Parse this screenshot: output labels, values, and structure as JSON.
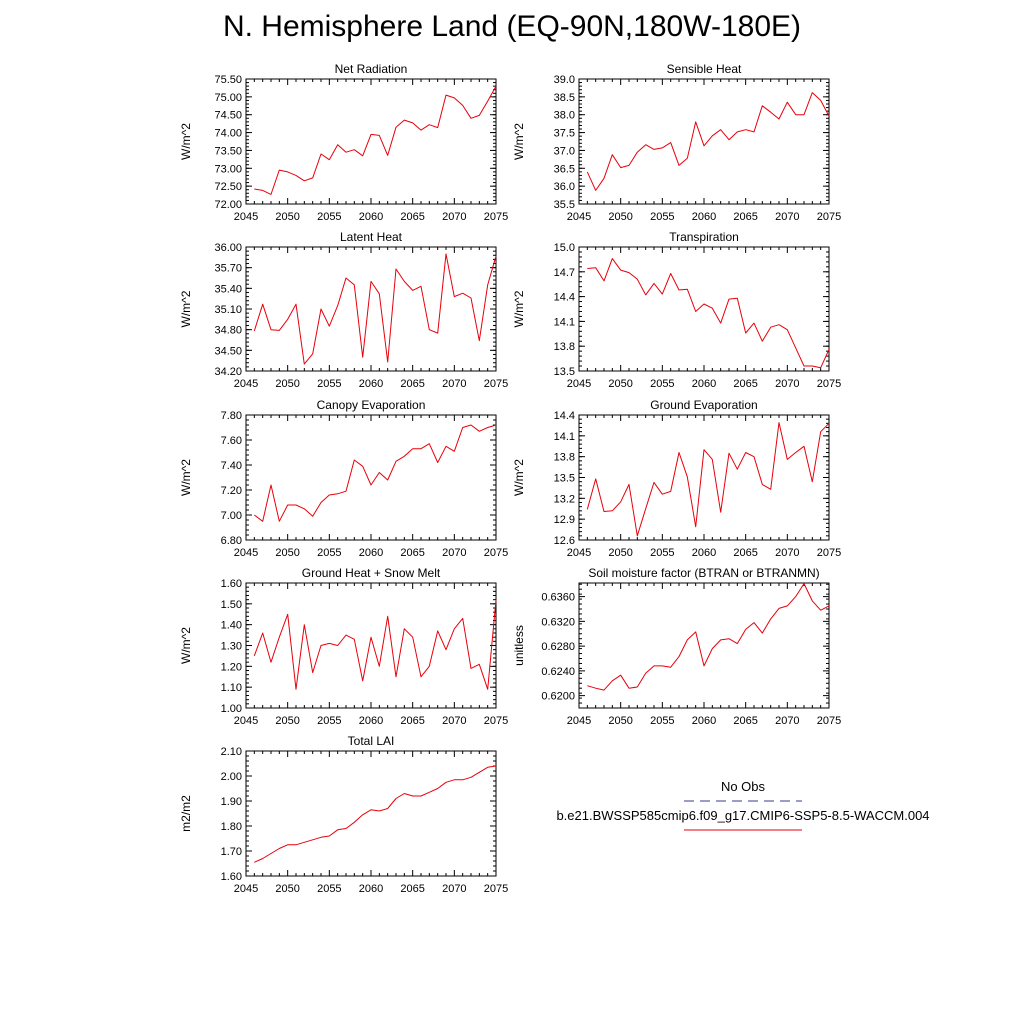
{
  "page": {
    "title": "N. Hemisphere Land (EQ-90N,180W-180E)"
  },
  "legend": {
    "obs_label": "No Obs",
    "obs_color": "#3a3a9a",
    "case_label": "b.e21.BWSSP585cmip6.f09_g17.CMIP6-SSP5-8.5-WACCM.004",
    "case_color": "#e8000b"
  },
  "chart_data": [
    {
      "type": "line",
      "title": "Net Radiation",
      "ylabel": "W/m^2",
      "xlim": [
        2045,
        2075
      ],
      "ylim": [
        72.0,
        75.5
      ],
      "xticks": [
        "2045",
        "2050",
        "2055",
        "2060",
        "2065",
        "2070",
        "2075"
      ],
      "yticks": [
        "72.00",
        "72.50",
        "73.00",
        "73.50",
        "74.00",
        "74.50",
        "75.00",
        "75.50"
      ],
      "series": [
        {
          "color": "#e8000b",
          "x": [
            2046,
            2047,
            2048,
            2049,
            2050,
            2051,
            2052,
            2053,
            2054,
            2055,
            2056,
            2057,
            2058,
            2059,
            2060,
            2061,
            2062,
            2063,
            2064,
            2065,
            2066,
            2067,
            2068,
            2069,
            2070,
            2071,
            2072,
            2073,
            2074,
            2075
          ],
          "values": [
            72.42,
            72.38,
            72.27,
            72.95,
            72.9,
            72.8,
            72.65,
            72.73,
            73.4,
            73.24,
            73.66,
            73.45,
            73.52,
            73.35,
            73.95,
            73.92,
            73.36,
            74.15,
            74.35,
            74.27,
            74.07,
            74.22,
            74.14,
            75.05,
            74.97,
            74.76,
            74.4,
            74.48,
            74.88,
            75.3
          ]
        }
      ]
    },
    {
      "type": "line",
      "title": "Sensible Heat",
      "ylabel": "W/m^2",
      "xlim": [
        2045,
        2075
      ],
      "ylim": [
        35.5,
        39.0
      ],
      "xticks": [
        "2045",
        "2050",
        "2055",
        "2060",
        "2065",
        "2070",
        "2075"
      ],
      "yticks": [
        "35.5",
        "36.0",
        "36.5",
        "37.0",
        "37.5",
        "38.0",
        "38.5",
        "39.0"
      ],
      "series": [
        {
          "color": "#e8000b",
          "x": [
            2046,
            2047,
            2048,
            2049,
            2050,
            2051,
            2052,
            2053,
            2054,
            2055,
            2056,
            2057,
            2058,
            2059,
            2060,
            2061,
            2062,
            2063,
            2064,
            2065,
            2066,
            2067,
            2068,
            2069,
            2070,
            2071,
            2072,
            2073,
            2074,
            2075
          ],
          "values": [
            36.4,
            35.88,
            36.22,
            36.88,
            36.52,
            36.58,
            36.95,
            37.16,
            37.03,
            37.07,
            37.22,
            36.58,
            36.78,
            37.8,
            37.13,
            37.41,
            37.58,
            37.3,
            37.52,
            37.58,
            37.52,
            38.25,
            38.07,
            37.88,
            38.35,
            38.0,
            38.0,
            38.62,
            38.4,
            37.96
          ]
        }
      ]
    },
    {
      "type": "line",
      "title": "Latent Heat",
      "ylabel": "W/m^2",
      "xlim": [
        2045,
        2075
      ],
      "ylim": [
        34.2,
        36.0
      ],
      "xticks": [
        "2045",
        "2050",
        "2055",
        "2060",
        "2065",
        "2070",
        "2075"
      ],
      "yticks": [
        "34.20",
        "34.50",
        "34.80",
        "35.10",
        "35.40",
        "35.70",
        "36.00"
      ],
      "series": [
        {
          "color": "#e8000b",
          "x": [
            2046,
            2047,
            2048,
            2049,
            2050,
            2051,
            2052,
            2053,
            2054,
            2055,
            2056,
            2057,
            2058,
            2059,
            2060,
            2061,
            2062,
            2063,
            2064,
            2065,
            2066,
            2067,
            2068,
            2069,
            2070,
            2071,
            2072,
            2073,
            2074,
            2075
          ],
          "values": [
            34.78,
            35.17,
            34.8,
            34.79,
            34.95,
            35.17,
            34.3,
            34.45,
            35.1,
            34.85,
            35.15,
            35.55,
            35.45,
            34.4,
            35.5,
            35.32,
            34.33,
            35.68,
            35.5,
            35.37,
            35.43,
            34.8,
            34.75,
            35.9,
            35.28,
            35.33,
            35.26,
            34.64,
            35.45,
            35.87
          ]
        }
      ]
    },
    {
      "type": "line",
      "title": "Transpiration",
      "ylabel": "W/m^2",
      "xlim": [
        2045,
        2075
      ],
      "ylim": [
        13.5,
        15.0
      ],
      "xticks": [
        "2045",
        "2050",
        "2055",
        "2060",
        "2065",
        "2070",
        "2075"
      ],
      "yticks": [
        "13.5",
        "13.8",
        "14.1",
        "14.4",
        "14.7",
        "15.0"
      ],
      "series": [
        {
          "color": "#e8000b",
          "x": [
            2046,
            2047,
            2048,
            2049,
            2050,
            2051,
            2052,
            2053,
            2054,
            2055,
            2056,
            2057,
            2058,
            2059,
            2060,
            2061,
            2062,
            2063,
            2064,
            2065,
            2066,
            2067,
            2068,
            2069,
            2070,
            2071,
            2072,
            2073,
            2074,
            2075
          ],
          "values": [
            14.74,
            14.75,
            14.59,
            14.86,
            14.72,
            14.69,
            14.61,
            14.42,
            14.56,
            14.43,
            14.68,
            14.48,
            14.49,
            14.22,
            14.31,
            14.26,
            14.08,
            14.37,
            14.38,
            13.96,
            14.08,
            13.86,
            14.03,
            14.06,
            14.0,
            13.78,
            13.56,
            13.56,
            13.54,
            13.76
          ]
        }
      ]
    },
    {
      "type": "line",
      "title": "Canopy Evaporation",
      "ylabel": "W/m^2",
      "xlim": [
        2045,
        2075
      ],
      "ylim": [
        6.8,
        7.8
      ],
      "xticks": [
        "2045",
        "2050",
        "2055",
        "2060",
        "2065",
        "2070",
        "2075"
      ],
      "yticks": [
        "6.80",
        "7.00",
        "7.20",
        "7.40",
        "7.60",
        "7.80"
      ],
      "series": [
        {
          "color": "#e8000b",
          "x": [
            2046,
            2047,
            2048,
            2049,
            2050,
            2051,
            2052,
            2053,
            2054,
            2055,
            2056,
            2057,
            2058,
            2059,
            2060,
            2061,
            2062,
            2063,
            2064,
            2065,
            2066,
            2067,
            2068,
            2069,
            2070,
            2071,
            2072,
            2073,
            2074,
            2075
          ],
          "values": [
            7.0,
            6.95,
            7.24,
            6.95,
            7.08,
            7.08,
            7.05,
            6.99,
            7.1,
            7.16,
            7.17,
            7.19,
            7.44,
            7.39,
            7.24,
            7.34,
            7.28,
            7.43,
            7.47,
            7.53,
            7.53,
            7.57,
            7.42,
            7.55,
            7.51,
            7.7,
            7.72,
            7.67,
            7.7,
            7.72
          ]
        }
      ]
    },
    {
      "type": "line",
      "title": "Ground Evaporation",
      "ylabel": "W/m^2",
      "xlim": [
        2045,
        2075
      ],
      "ylim": [
        12.6,
        14.4
      ],
      "xticks": [
        "2045",
        "2050",
        "2055",
        "2060",
        "2065",
        "2070",
        "2075"
      ],
      "yticks": [
        "12.6",
        "12.9",
        "13.2",
        "13.5",
        "13.8",
        "14.1",
        "14.4"
      ],
      "series": [
        {
          "color": "#e8000b",
          "x": [
            2046,
            2047,
            2048,
            2049,
            2050,
            2051,
            2052,
            2053,
            2054,
            2055,
            2056,
            2057,
            2058,
            2059,
            2060,
            2061,
            2062,
            2063,
            2064,
            2065,
            2066,
            2067,
            2068,
            2069,
            2070,
            2071,
            2072,
            2073,
            2074,
            2075
          ],
          "values": [
            13.04,
            13.48,
            13.01,
            13.02,
            13.15,
            13.4,
            12.66,
            13.05,
            13.43,
            13.26,
            13.3,
            13.86,
            13.51,
            12.79,
            13.9,
            13.76,
            13.0,
            13.85,
            13.62,
            13.86,
            13.8,
            13.4,
            13.33,
            14.29,
            13.76,
            13.86,
            13.95,
            13.44,
            14.16,
            14.28
          ]
        }
      ]
    },
    {
      "type": "line",
      "title": "Ground Heat + Snow Melt",
      "ylabel": "W/m^2",
      "xlim": [
        2045,
        2075
      ],
      "ylim": [
        1.0,
        1.6
      ],
      "xticks": [
        "2045",
        "2050",
        "2055",
        "2060",
        "2065",
        "2070",
        "2075"
      ],
      "yticks": [
        "1.00",
        "1.10",
        "1.20",
        "1.30",
        "1.40",
        "1.50",
        "1.60"
      ],
      "series": [
        {
          "color": "#e8000b",
          "x": [
            2046,
            2047,
            2048,
            2049,
            2050,
            2051,
            2052,
            2053,
            2054,
            2055,
            2056,
            2057,
            2058,
            2059,
            2060,
            2061,
            2062,
            2063,
            2064,
            2065,
            2066,
            2067,
            2068,
            2069,
            2070,
            2071,
            2072,
            2073,
            2074,
            2075
          ],
          "values": [
            1.25,
            1.36,
            1.22,
            1.34,
            1.45,
            1.09,
            1.4,
            1.17,
            1.3,
            1.31,
            1.3,
            1.35,
            1.33,
            1.13,
            1.34,
            1.2,
            1.44,
            1.15,
            1.38,
            1.34,
            1.15,
            1.2,
            1.37,
            1.28,
            1.38,
            1.43,
            1.19,
            1.21,
            1.09,
            1.52
          ]
        }
      ]
    },
    {
      "type": "line",
      "title": "Soil moisture factor (BTRAN or BTRANMN)",
      "ylabel": "unitless",
      "xlim": [
        2045,
        2075
      ],
      "ylim": [
        0.618,
        0.6382
      ],
      "xticks": [
        "2045",
        "2050",
        "2055",
        "2060",
        "2065",
        "2070",
        "2075"
      ],
      "yticks": [
        "0.6200",
        "0.6240",
        "0.6280",
        "0.6320",
        "0.6360"
      ],
      "series": [
        {
          "color": "#e8000b",
          "x": [
            2046,
            2047,
            2048,
            2049,
            2050,
            2051,
            2052,
            2053,
            2054,
            2055,
            2056,
            2057,
            2058,
            2059,
            2060,
            2061,
            2062,
            2063,
            2064,
            2065,
            2066,
            2067,
            2068,
            2069,
            2070,
            2071,
            2072,
            2073,
            2074,
            2075
          ],
          "values": [
            0.6216,
            0.6212,
            0.6209,
            0.6224,
            0.6233,
            0.6212,
            0.6214,
            0.6236,
            0.6248,
            0.6248,
            0.6246,
            0.6263,
            0.629,
            0.6303,
            0.6248,
            0.6276,
            0.629,
            0.6292,
            0.6284,
            0.6307,
            0.6318,
            0.6301,
            0.6324,
            0.6341,
            0.6345,
            0.636,
            0.6381,
            0.6353,
            0.6338,
            0.6345
          ]
        }
      ]
    },
    {
      "type": "line",
      "title": "Total LAI",
      "ylabel": "m2/m2",
      "xlim": [
        2045,
        2075
      ],
      "ylim": [
        1.6,
        2.1
      ],
      "xticks": [
        "2045",
        "2050",
        "2055",
        "2060",
        "2065",
        "2070",
        "2075"
      ],
      "yticks": [
        "1.60",
        "1.70",
        "1.80",
        "1.90",
        "2.00",
        "2.10"
      ],
      "series": [
        {
          "color": "#e8000b",
          "x": [
            2046,
            2047,
            2048,
            2049,
            2050,
            2051,
            2052,
            2053,
            2054,
            2055,
            2056,
            2057,
            2058,
            2059,
            2060,
            2061,
            2062,
            2063,
            2064,
            2065,
            2066,
            2067,
            2068,
            2069,
            2070,
            2071,
            2072,
            2073,
            2074,
            2075
          ],
          "values": [
            1.655,
            1.67,
            1.69,
            1.71,
            1.725,
            1.725,
            1.735,
            1.745,
            1.755,
            1.76,
            1.785,
            1.79,
            1.815,
            1.845,
            1.865,
            1.86,
            1.87,
            1.91,
            1.93,
            1.92,
            1.92,
            1.935,
            1.95,
            1.975,
            1.985,
            1.985,
            1.995,
            2.015,
            2.035,
            2.04
          ]
        }
      ]
    }
  ]
}
